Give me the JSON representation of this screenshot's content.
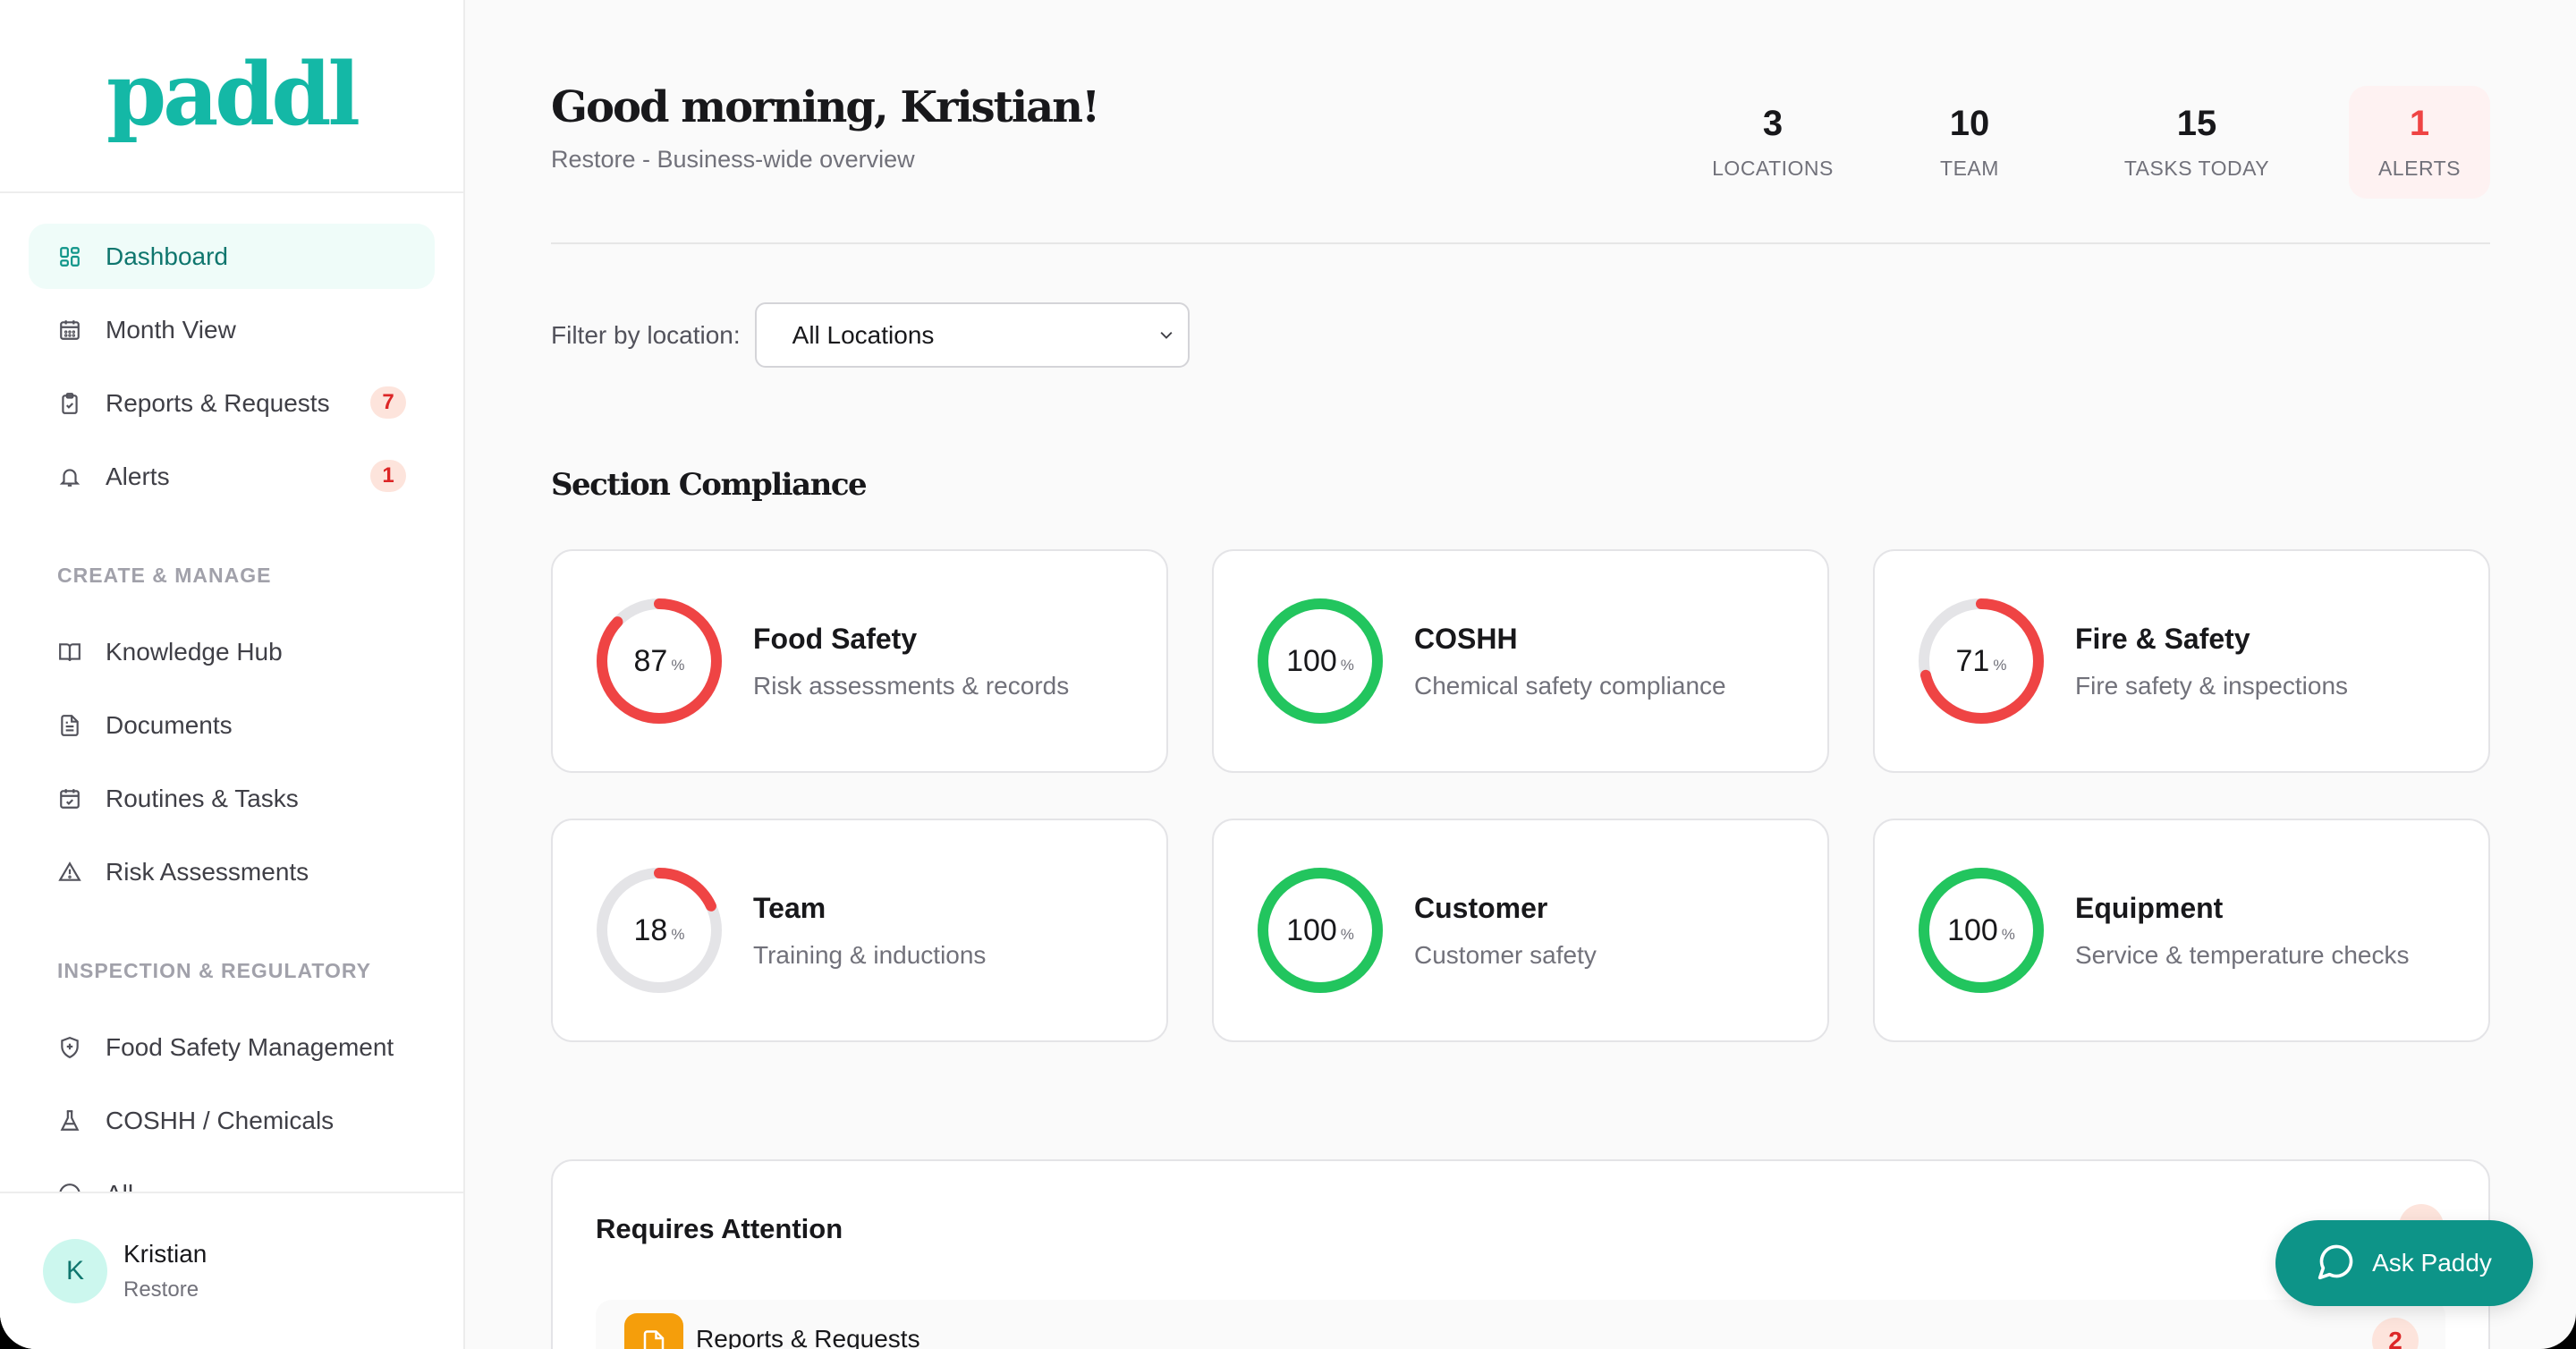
{
  "sidebar": {
    "logo": "paddl",
    "items": [
      {
        "label": "Dashboard",
        "icon": "dashboard-icon",
        "active": true
      },
      {
        "label": "Month View",
        "icon": "calendar-icon"
      },
      {
        "label": "Reports & Requests",
        "icon": "clipboard-check-icon",
        "badge": "7"
      },
      {
        "label": "Alerts",
        "icon": "bell-icon",
        "badge": "1"
      }
    ],
    "sections": [
      {
        "title": "CREATE & MANAGE",
        "items": [
          {
            "label": "Knowledge Hub",
            "icon": "book-open-icon"
          },
          {
            "label": "Documents",
            "icon": "document-icon"
          },
          {
            "label": "Routines & Tasks",
            "icon": "calendar-check-icon"
          },
          {
            "label": "Risk Assessments",
            "icon": "warning-triangle-icon"
          }
        ]
      },
      {
        "title": "INSPECTION & REGULATORY",
        "items": [
          {
            "label": "Food Safety Management",
            "icon": "shield-plus-icon"
          },
          {
            "label": "COSHH / Chemicals",
            "icon": "flask-icon"
          },
          {
            "label": "All...",
            "icon": "info-circle-icon"
          }
        ]
      }
    ],
    "user": {
      "initial": "K",
      "name": "Kristian",
      "org": "Restore"
    }
  },
  "header": {
    "greeting": "Good morning, Kristian!",
    "subtitle": "Restore - Business-wide overview",
    "stats": [
      {
        "value": "3",
        "label": "LOCATIONS"
      },
      {
        "value": "10",
        "label": "TEAM"
      },
      {
        "value": "15",
        "label": "TASKS TODAY"
      },
      {
        "value": "1",
        "label": "ALERTS"
      }
    ]
  },
  "filter": {
    "label": "Filter by location:",
    "selected": "All Locations"
  },
  "compliance": {
    "title": "Section Compliance",
    "cards": [
      {
        "title": "Food Safety",
        "desc": "Risk assessments & records",
        "percent": 87,
        "color": "#ef4444"
      },
      {
        "title": "COSHH",
        "desc": "Chemical safety compliance",
        "percent": 100,
        "color": "#22c55e"
      },
      {
        "title": "Fire & Safety",
        "desc": "Fire safety & inspections",
        "percent": 71,
        "color": "#ef4444"
      },
      {
        "title": "Team",
        "desc": "Training & inductions",
        "percent": 18,
        "color": "#ef4444"
      },
      {
        "title": "Customer",
        "desc": "Customer safety",
        "percent": 100,
        "color": "#22c55e"
      },
      {
        "title": "Equipment",
        "desc": "Service & temperature checks",
        "percent": 100,
        "color": "#22c55e"
      }
    ],
    "pct_symbol": "%"
  },
  "attention": {
    "title": "Requires Attention",
    "rows": [
      {
        "label": "Reports & Requests",
        "count": "2"
      }
    ]
  },
  "ask": {
    "label": "Ask Paddy"
  },
  "colors": {
    "brand": "#14b8a6",
    "accent": "#0d9488",
    "danger": "#ef4444",
    "success": "#22c55e",
    "warning": "#f59e0b"
  }
}
